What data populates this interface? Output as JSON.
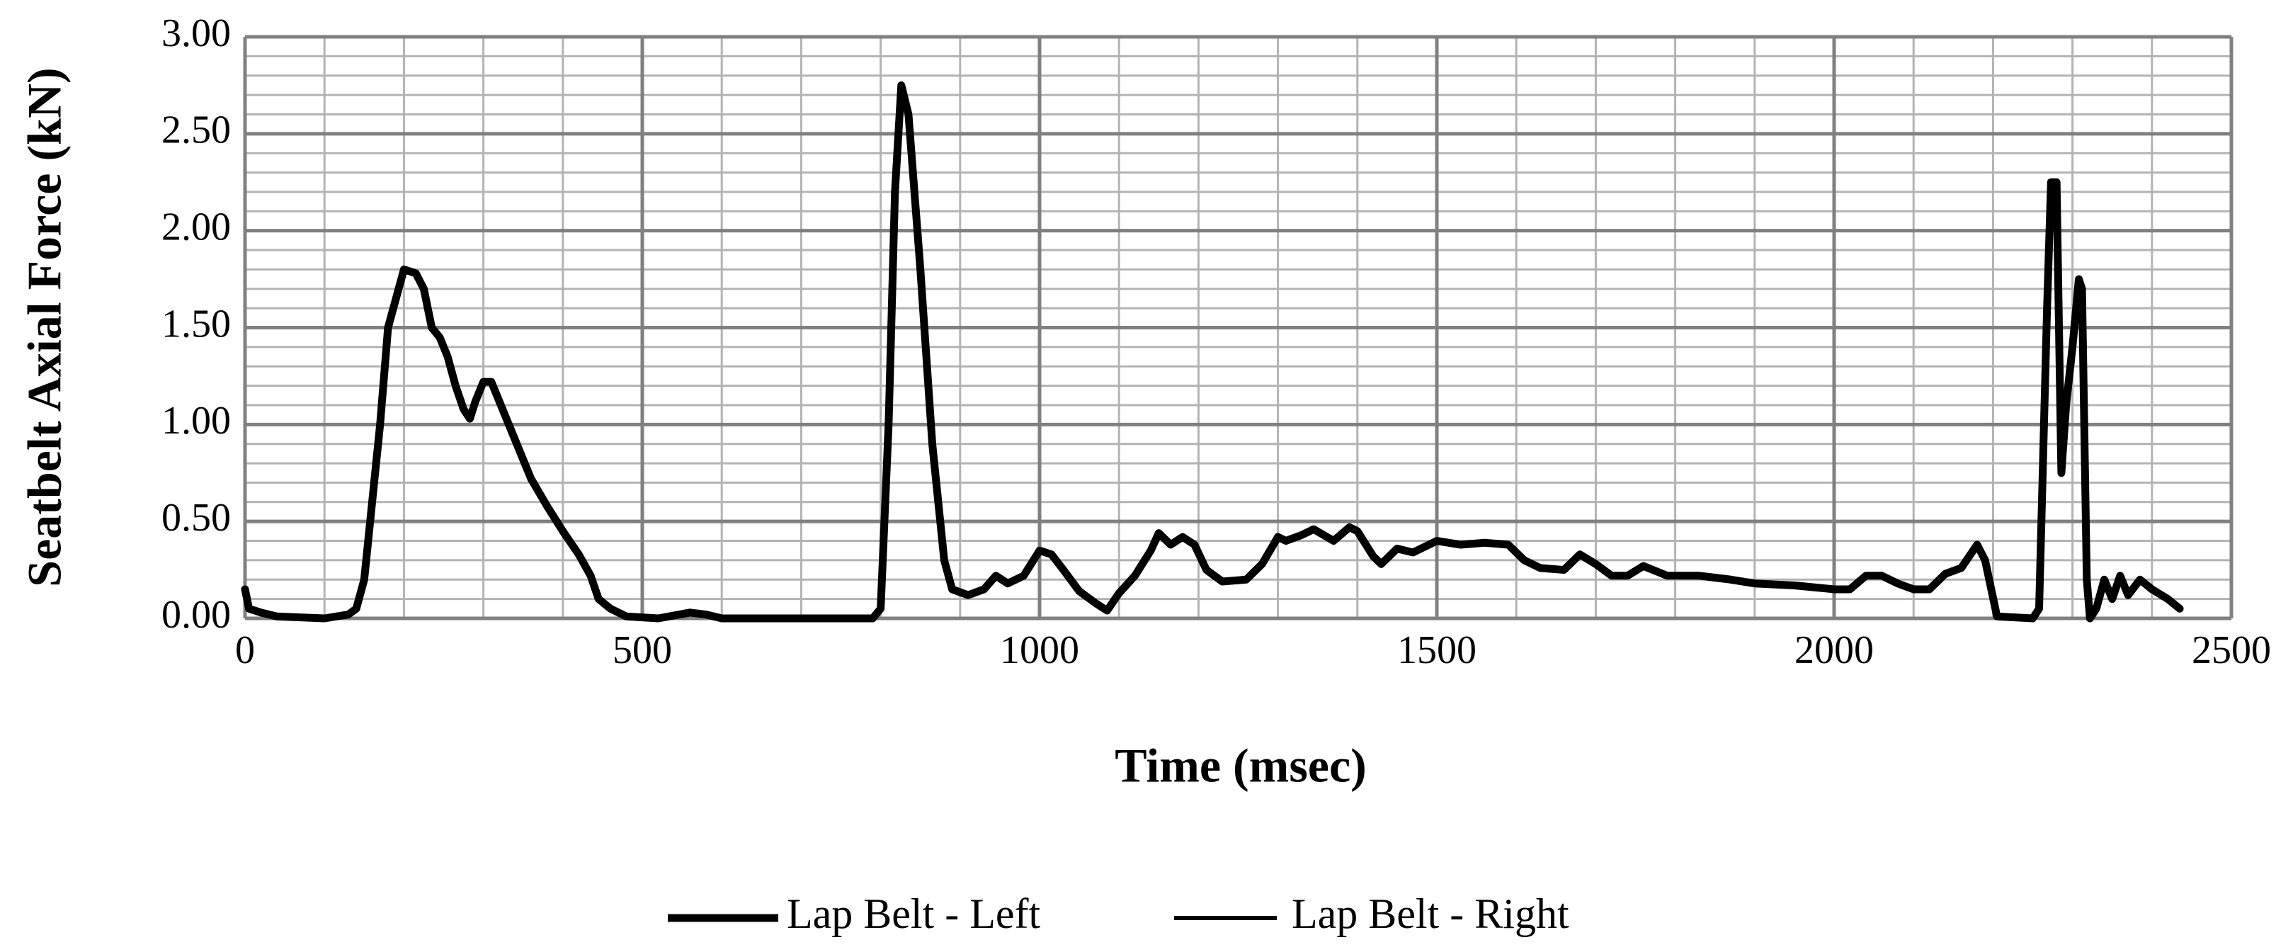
{
  "chart_data": {
    "type": "line",
    "x_label": "Time (msec)",
    "y_label": "Seatbelt Axial Force (kN)",
    "xlim": [
      0,
      2500
    ],
    "xticks": [
      0,
      500,
      1000,
      1500,
      2000,
      2500
    ],
    "ylim": [
      0,
      3
    ],
    "yticks": [
      {
        "value": 0,
        "label": "0.00"
      },
      {
        "value": 0.5,
        "label": "0.50"
      },
      {
        "value": 1,
        "label": "1.00"
      },
      {
        "value": 1.5,
        "label": "1.50"
      },
      {
        "value": 2,
        "label": "2.00"
      },
      {
        "value": 2.5,
        "label": "2.50"
      },
      {
        "value": 3,
        "label": "3.00"
      }
    ],
    "grid": true,
    "minor_grid": true,
    "legend": "bottom",
    "x": [
      0,
      5,
      20,
      40,
      100,
      130,
      140,
      150,
      160,
      170,
      180,
      190,
      200,
      215,
      225,
      235,
      245,
      255,
      265,
      275,
      283,
      290,
      300,
      310,
      320,
      340,
      360,
      380,
      400,
      420,
      435,
      445,
      460,
      480,
      520,
      560,
      580,
      600,
      790,
      800,
      810,
      818,
      826,
      835,
      850,
      865,
      880,
      890,
      910,
      930,
      945,
      960,
      980,
      1000,
      1015,
      1030,
      1050,
      1070,
      1085,
      1100,
      1120,
      1140,
      1150,
      1165,
      1180,
      1195,
      1210,
      1230,
      1260,
      1280,
      1300,
      1310,
      1330,
      1345,
      1370,
      1390,
      1400,
      1420,
      1430,
      1450,
      1470,
      1500,
      1530,
      1560,
      1590,
      1610,
      1630,
      1660,
      1680,
      1700,
      1720,
      1740,
      1760,
      1790,
      1830,
      1870,
      1900,
      1950,
      2000,
      2020,
      2040,
      2060,
      2080,
      2100,
      2120,
      2140,
      2160,
      2180,
      2190,
      2205,
      2250,
      2258,
      2268,
      2273,
      2280,
      2286,
      2292,
      2300,
      2308,
      2312,
      2318,
      2322,
      2330,
      2340,
      2350,
      2360,
      2370,
      2385,
      2400,
      2420,
      2435
    ],
    "series": [
      {
        "name": "Lap Belt - Left",
        "color": "#000000",
        "values": [
          0.15,
          0.05,
          0.03,
          0.01,
          0,
          0.02,
          0.05,
          0.2,
          0.6,
          1.0,
          1.5,
          1.65,
          1.8,
          1.78,
          1.7,
          1.5,
          1.45,
          1.35,
          1.2,
          1.08,
          1.03,
          1.12,
          1.22,
          1.22,
          1.12,
          0.92,
          0.72,
          0.58,
          0.45,
          0.33,
          0.22,
          0.1,
          0.05,
          0.01,
          0,
          0.03,
          0.02,
          0,
          0,
          0.05,
          1.0,
          2.2,
          2.75,
          2.6,
          1.8,
          0.9,
          0.3,
          0.15,
          0.12,
          0.15,
          0.22,
          0.18,
          0.22,
          0.35,
          0.33,
          0.25,
          0.14,
          0.08,
          0.04,
          0.13,
          0.22,
          0.35,
          0.44,
          0.38,
          0.42,
          0.38,
          0.25,
          0.19,
          0.2,
          0.28,
          0.42,
          0.4,
          0.43,
          0.46,
          0.4,
          0.47,
          0.45,
          0.32,
          0.28,
          0.36,
          0.34,
          0.4,
          0.38,
          0.39,
          0.38,
          0.3,
          0.26,
          0.25,
          0.33,
          0.28,
          0.22,
          0.22,
          0.27,
          0.22,
          0.22,
          0.2,
          0.18,
          0.17,
          0.15,
          0.15,
          0.22,
          0.22,
          0.18,
          0.15,
          0.15,
          0.23,
          0.26,
          0.38,
          0.3,
          0.01,
          0,
          0.05,
          1.6,
          2.25,
          2.25,
          0.75,
          1.1,
          1.4,
          1.75,
          1.7,
          0.2,
          0,
          0.05,
          0.2,
          0.1,
          0.22,
          0.12,
          0.2,
          0.15,
          0.1,
          0.05
        ]
      },
      {
        "name": "Lap Belt - Right",
        "color": "#000000",
        "values": [
          0.15,
          0.05,
          0.03,
          0.01,
          0,
          0.02,
          0.05,
          0.2,
          0.6,
          1.0,
          1.5,
          1.65,
          1.8,
          1.78,
          1.7,
          1.5,
          1.45,
          1.35,
          1.2,
          1.08,
          1.03,
          1.12,
          1.22,
          1.22,
          1.12,
          0.92,
          0.72,
          0.58,
          0.45,
          0.33,
          0.22,
          0.1,
          0.05,
          0.01,
          0,
          0.03,
          0.02,
          0,
          0,
          0.05,
          1.0,
          2.2,
          2.75,
          2.6,
          1.8,
          0.9,
          0.3,
          0.15,
          0.12,
          0.15,
          0.22,
          0.18,
          0.22,
          0.35,
          0.33,
          0.25,
          0.14,
          0.08,
          0.04,
          0.13,
          0.22,
          0.35,
          0.44,
          0.38,
          0.42,
          0.38,
          0.25,
          0.19,
          0.2,
          0.28,
          0.42,
          0.4,
          0.43,
          0.46,
          0.4,
          0.47,
          0.45,
          0.32,
          0.28,
          0.36,
          0.34,
          0.4,
          0.38,
          0.39,
          0.38,
          0.3,
          0.26,
          0.25,
          0.33,
          0.28,
          0.22,
          0.22,
          0.27,
          0.22,
          0.22,
          0.2,
          0.18,
          0.17,
          0.15,
          0.15,
          0.22,
          0.22,
          0.18,
          0.15,
          0.15,
          0.23,
          0.26,
          0.38,
          0.3,
          0.01,
          0,
          0.05,
          1.6,
          2.25,
          2.25,
          0.75,
          1.1,
          1.4,
          1.75,
          1.7,
          0.2,
          0,
          0.05,
          0.2,
          0.1,
          0.22,
          0.12,
          0.2,
          0.15,
          0.1,
          0.05
        ]
      }
    ]
  }
}
